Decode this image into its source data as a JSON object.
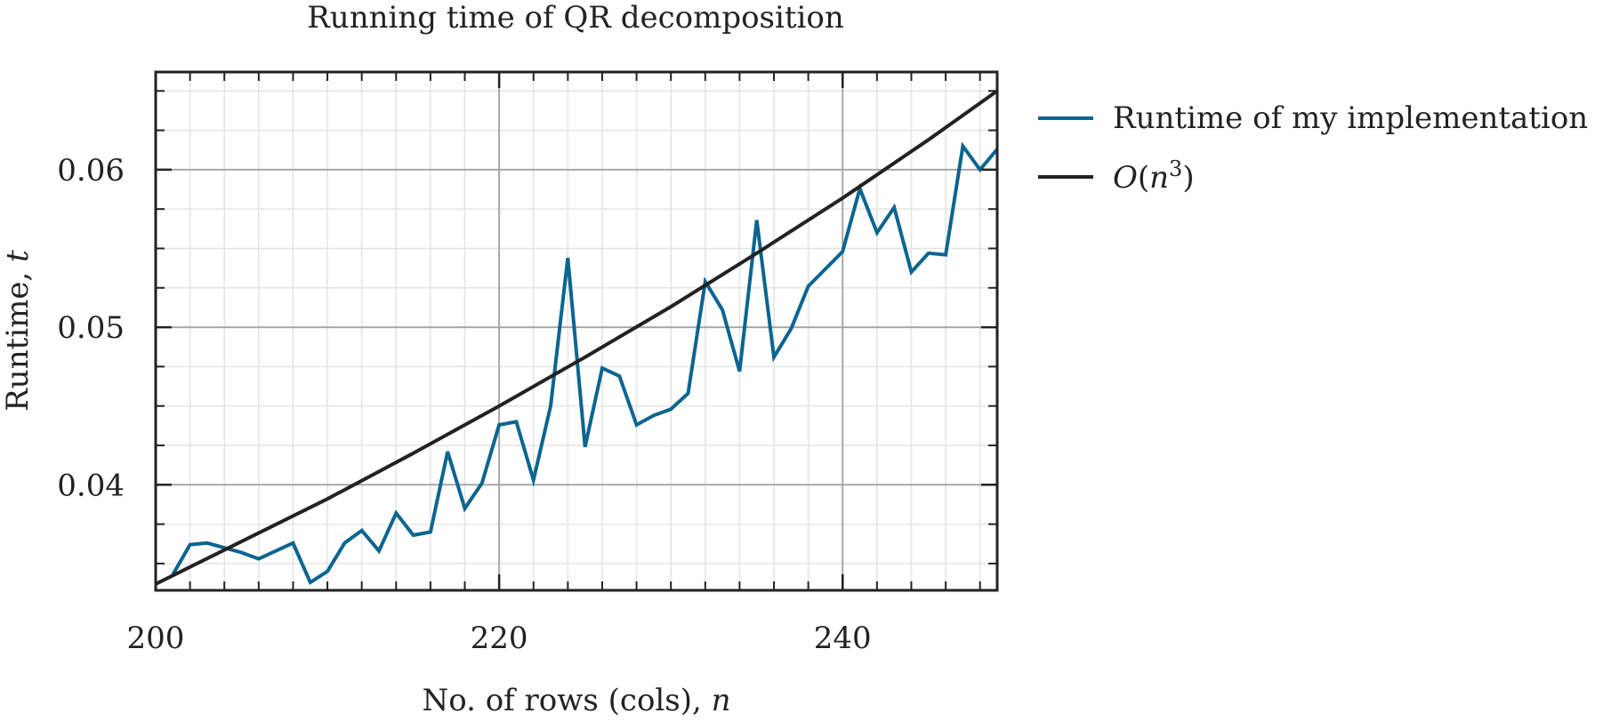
{
  "chart_data": {
    "type": "line",
    "title": "Running time of QR decomposition",
    "xlabel": "No. of rows (cols),",
    "xlabel_var": "n",
    "ylabel": "Runtime,",
    "ylabel_var": "t",
    "xlim": [
      200,
      249
    ],
    "ylim": [
      0.0333,
      0.0662
    ],
    "x_ticks": [
      200,
      220,
      240
    ],
    "x_tick_labels": [
      "200",
      "220",
      "240"
    ],
    "y_ticks": [
      0.04,
      0.05,
      0.06
    ],
    "y_tick_labels": [
      "0.04",
      "0.05",
      "0.06"
    ],
    "x_minor_step": 2,
    "y_minor_step": 0.0025,
    "grid": true,
    "legend_position": "outside-right",
    "series": [
      {
        "name": "Runtime of my implementation",
        "color": "#0b6590",
        "x": [
          201,
          202,
          203,
          204,
          205,
          206,
          207,
          208,
          209,
          210,
          211,
          212,
          213,
          214,
          215,
          216,
          217,
          218,
          219,
          220,
          221,
          222,
          223,
          224,
          225,
          226,
          227,
          228,
          229,
          230,
          231,
          232,
          233,
          234,
          235,
          236,
          237,
          238,
          239,
          240,
          241,
          242,
          243,
          244,
          245,
          246,
          247,
          248,
          249
        ],
        "y": [
          0.0343,
          0.0362,
          0.0363,
          0.036,
          0.0357,
          0.0353,
          0.0358,
          0.0363,
          0.0338,
          0.0345,
          0.0363,
          0.0371,
          0.0358,
          0.0382,
          0.0368,
          0.037,
          0.0421,
          0.0385,
          0.0401,
          0.0438,
          0.044,
          0.0403,
          0.045,
          0.0544,
          0.0424,
          0.0474,
          0.0469,
          0.0438,
          0.0444,
          0.0448,
          0.0458,
          0.0529,
          0.0511,
          0.0472,
          0.0568,
          0.0481,
          0.0499,
          0.0526,
          0.0537,
          0.0548,
          0.0588,
          0.056,
          0.0576,
          0.0535,
          0.0547,
          0.0546,
          0.0615,
          0.06,
          0.0613
        ]
      },
      {
        "name": "O(n^3)",
        "color": "#222222",
        "x": [
          200,
          205,
          210,
          215,
          220,
          225,
          230,
          235,
          240,
          245,
          249
        ],
        "y": [
          0.0337,
          0.0364,
          0.0391,
          0.042,
          0.045,
          0.0481,
          0.0513,
          0.0547,
          0.0582,
          0.0619,
          0.065
        ]
      }
    ]
  }
}
